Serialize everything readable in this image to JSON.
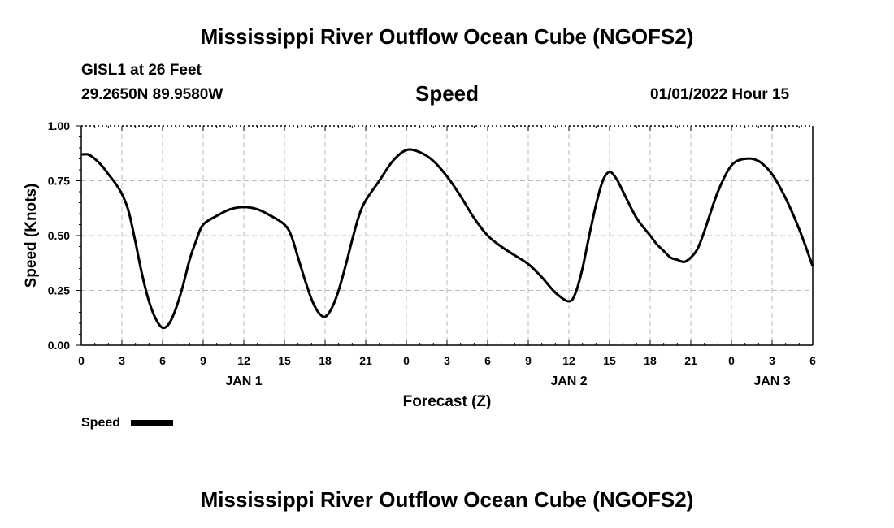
{
  "header": {
    "title": "Mississippi River Outflow Ocean Cube (NGOFS2)",
    "station": "GISL1 at 26 Feet",
    "coords": "29.2650N  89.9580W",
    "datetime": "01/01/2022 Hour 15"
  },
  "footer": {
    "title": "Mississippi River Outflow Ocean Cube (NGOFS2)"
  },
  "colors": {
    "line": "#000000",
    "grid": "#bbbbbb",
    "axis": "#000000"
  },
  "chart_data": {
    "type": "line",
    "title": "Speed",
    "xlabel": "Forecast (Z)",
    "ylabel": "Speed (Knots)",
    "xlim": [
      0,
      54
    ],
    "ylim": [
      0,
      1.0
    ],
    "grid": true,
    "legend": "bottom-left",
    "x_ticks": [
      0,
      3,
      6,
      9,
      12,
      15,
      18,
      21,
      24,
      27,
      30,
      33,
      36,
      39,
      42,
      45,
      48,
      51,
      54
    ],
    "x_tick_labels": [
      "0",
      "3",
      "6",
      "9",
      "12",
      "15",
      "18",
      "21",
      "0",
      "3",
      "6",
      "9",
      "12",
      "15",
      "18",
      "21",
      "0",
      "3",
      "6"
    ],
    "y_ticks": [
      0,
      0.25,
      0.5,
      0.75,
      1.0
    ],
    "y_tick_labels": [
      "0.00",
      "0.25",
      "0.50",
      "0.75",
      "1.00"
    ],
    "day_labels": [
      {
        "x": 12,
        "label": "JAN 1"
      },
      {
        "x": 36,
        "label": "JAN 2"
      },
      {
        "x": 51,
        "label": "JAN 3"
      }
    ],
    "series": [
      {
        "name": "Speed",
        "x": [
          0,
          0.5,
          1,
          1.5,
          2,
          2.5,
          3,
          3.5,
          4,
          4.5,
          5,
          5.5,
          6,
          6.5,
          7,
          7.5,
          8,
          8.5,
          9,
          10,
          11,
          12,
          13,
          14,
          15,
          15.5,
          16,
          16.5,
          17,
          17.5,
          18,
          18.5,
          19,
          19.5,
          20,
          20.5,
          21,
          22,
          23,
          24,
          25,
          26,
          27,
          28,
          29,
          30,
          31,
          32,
          33,
          34,
          35,
          36,
          36.5,
          37,
          37.5,
          38,
          38.5,
          39,
          39.5,
          40,
          41,
          42,
          42.5,
          43,
          43.5,
          44,
          44.5,
          45,
          45.5,
          46,
          47,
          48,
          49,
          50,
          51,
          52,
          53,
          54
        ],
        "values": [
          0.87,
          0.87,
          0.85,
          0.82,
          0.78,
          0.74,
          0.69,
          0.61,
          0.47,
          0.32,
          0.2,
          0.12,
          0.08,
          0.1,
          0.17,
          0.27,
          0.39,
          0.48,
          0.55,
          0.59,
          0.62,
          0.63,
          0.62,
          0.59,
          0.55,
          0.5,
          0.4,
          0.3,
          0.21,
          0.15,
          0.13,
          0.17,
          0.25,
          0.36,
          0.48,
          0.59,
          0.66,
          0.75,
          0.84,
          0.89,
          0.88,
          0.84,
          0.77,
          0.68,
          0.58,
          0.5,
          0.45,
          0.41,
          0.37,
          0.31,
          0.24,
          0.2,
          0.24,
          0.35,
          0.5,
          0.64,
          0.75,
          0.79,
          0.76,
          0.7,
          0.58,
          0.5,
          0.46,
          0.43,
          0.4,
          0.39,
          0.38,
          0.4,
          0.44,
          0.52,
          0.7,
          0.82,
          0.85,
          0.84,
          0.78,
          0.67,
          0.53,
          0.36
        ]
      }
    ]
  }
}
